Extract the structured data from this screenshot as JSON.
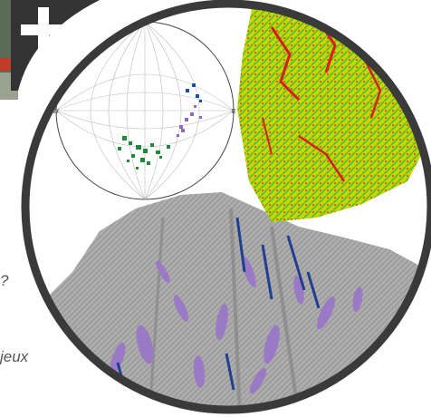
{
  "badge": {
    "icon": "plus-icon",
    "color": "#333333"
  },
  "side_text": {
    "line1": "?",
    "line2": "jeux"
  },
  "colors": {
    "frame": "#3a3a3a",
    "stereonet_blue": "#1f4fa0",
    "stereonet_purple": "#8c6bb8",
    "stereonet_green": "#1e8a3a",
    "heatmap_yellow": "#c8d800",
    "heatmap_red": "#d42020",
    "heatmap_green": "#2fae3a",
    "relief": "#a9a9a9",
    "fracture_purple": "#9a7ac4",
    "fracture_blue": "#1f3f8f"
  }
}
